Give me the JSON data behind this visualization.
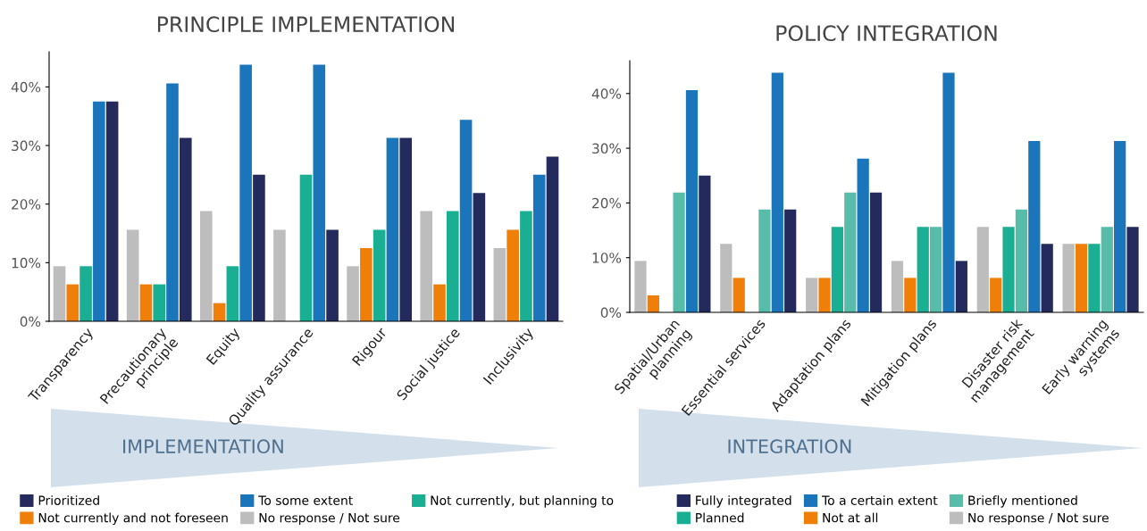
{
  "chart_data": [
    {
      "type": "bar",
      "title": "PRINCIPLE IMPLEMENTATION",
      "categories": [
        "Transparency",
        "Precautionary\nprinciple",
        "Equity",
        "Quality assurance",
        "Rigour",
        "Social justice",
        "Inclusivity"
      ],
      "series": [
        {
          "name": "No response / Not sure",
          "color": "#bdbdbd",
          "values": [
            9.4,
            15.6,
            18.8,
            15.6,
            9.4,
            18.8,
            12.5
          ]
        },
        {
          "name": "Not currently and not foreseen",
          "color": "#f07f09",
          "values": [
            6.3,
            6.3,
            3.1,
            0,
            12.5,
            6.3,
            15.6
          ]
        },
        {
          "name": "Not currently, but planning to",
          "color": "#1aaf93",
          "values": [
            9.4,
            6.3,
            9.4,
            25,
            15.6,
            18.8,
            18.8
          ]
        },
        {
          "name": "To some extent",
          "color": "#1a75bb",
          "values": [
            37.5,
            40.6,
            43.8,
            43.8,
            31.3,
            34.4,
            25
          ]
        },
        {
          "name": "Prioritized",
          "color": "#242b5c",
          "values": [
            37.5,
            31.3,
            25,
            15.6,
            31.3,
            21.9,
            28.1
          ]
        }
      ],
      "ylim": [
        0,
        46
      ],
      "yticks": [
        {
          "value": 0,
          "label": "0%"
        },
        {
          "value": 10,
          "label": "10%"
        },
        {
          "value": 20,
          "label": "20%"
        },
        {
          "value": 30,
          "label": "30%"
        },
        {
          "value": 40,
          "label": "40%"
        }
      ],
      "grid": false,
      "legend": "bottom",
      "annotations": [
        "IMPLEMENTATION"
      ]
    },
    {
      "type": "bar",
      "title": "POLICY INTEGRATION",
      "categories": [
        "Spatial/Urban\nplanning",
        "Essential services",
        "Adaptation plans",
        "Mitigation plans",
        "Disaster risk\nmanagement",
        "Early warning\nsystems"
      ],
      "series": [
        {
          "name": "No response / Not sure",
          "color": "#bdbdbd",
          "values": [
            9.4,
            12.5,
            6.3,
            9.4,
            15.6,
            12.5
          ]
        },
        {
          "name": "Not at all",
          "color": "#f07f09",
          "values": [
            3.1,
            6.3,
            6.3,
            6.3,
            6.3,
            12.5
          ]
        },
        {
          "name": "Planned",
          "color": "#1aaf93",
          "values": [
            0,
            0,
            15.6,
            15.6,
            15.6,
            12.5
          ]
        },
        {
          "name": "Briefly mentioned",
          "color": "#58bcaa",
          "values": [
            21.9,
            18.8,
            21.9,
            15.6,
            18.8,
            15.6
          ]
        },
        {
          "name": "To a certain extent",
          "color": "#1a75bb",
          "values": [
            40.6,
            43.8,
            28.1,
            43.8,
            31.3,
            31.3
          ]
        },
        {
          "name": "Fully integrated",
          "color": "#242b5c",
          "values": [
            25,
            18.8,
            21.9,
            9.4,
            12.5,
            15.6
          ]
        }
      ],
      "ylim": [
        0,
        46
      ],
      "yticks": [
        {
          "value": 0,
          "label": "0%"
        },
        {
          "value": 10,
          "label": "10%"
        },
        {
          "value": 20,
          "label": "20%"
        },
        {
          "value": 30,
          "label": "30%"
        },
        {
          "value": 40,
          "label": "40%"
        }
      ],
      "grid": false,
      "legend": "bottom",
      "annotations": [
        "INTEGRATION"
      ]
    }
  ]
}
